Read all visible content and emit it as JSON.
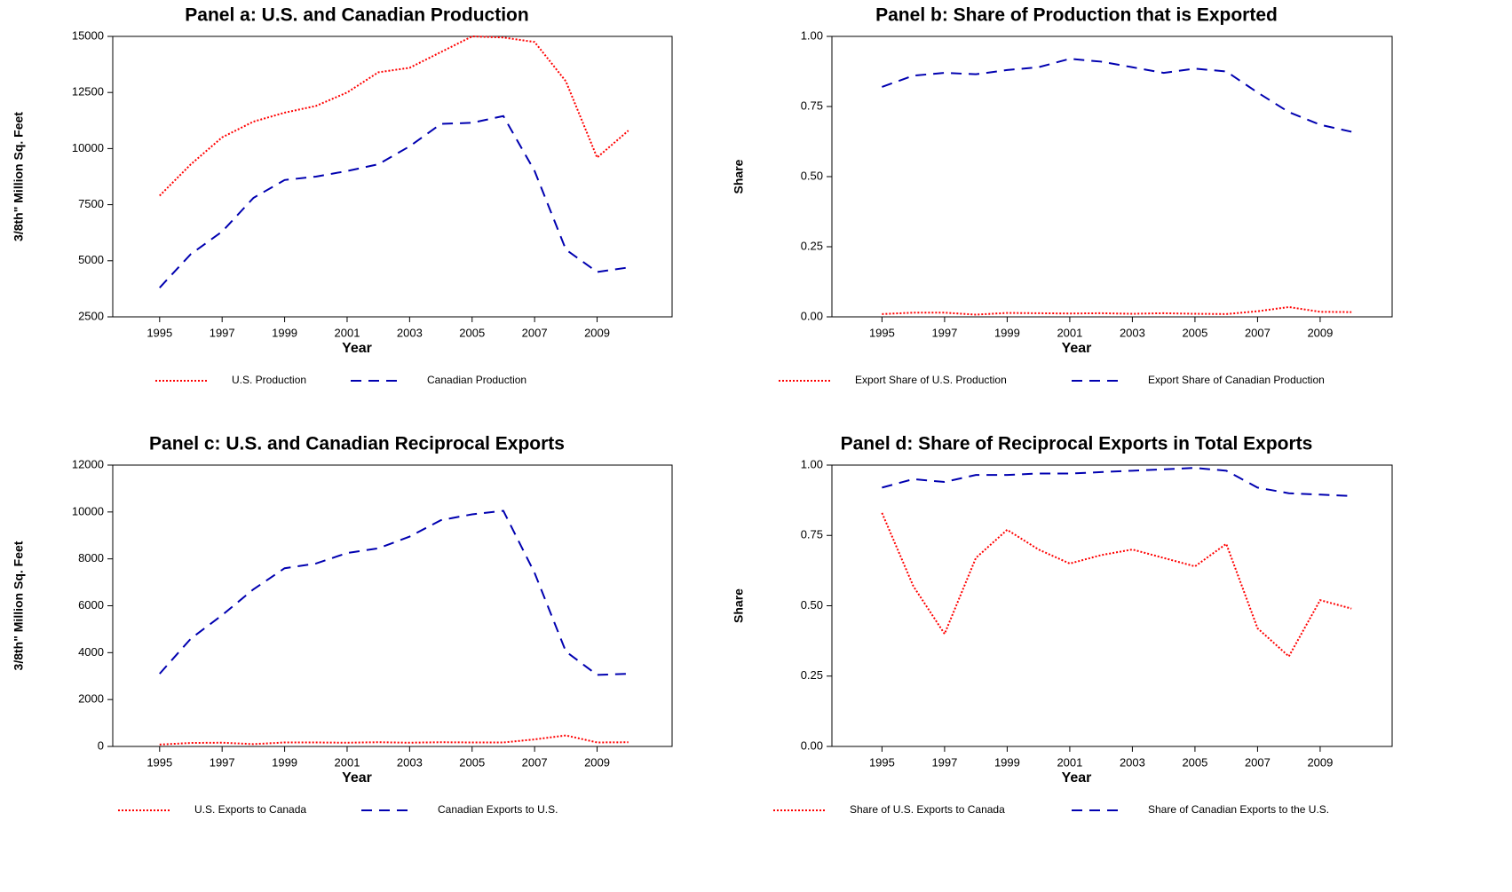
{
  "chart_data": [
    {
      "type": "line",
      "title": "Panel a: U.S. and Canadian Production",
      "x_label": "Year",
      "y_label": "3/8th\" Million Sq. Feet",
      "x": [
        1995,
        1996,
        1997,
        1998,
        1999,
        2000,
        2001,
        2002,
        2003,
        2004,
        2005,
        2006,
        2007,
        2008,
        2009,
        2010
      ],
      "xlim": [
        1993.5,
        2011.4
      ],
      "xticks": [
        1995,
        1997,
        1999,
        2001,
        2003,
        2005,
        2007,
        2009
      ],
      "ylim": [
        2500,
        15000
      ],
      "yticks": [
        2500,
        5000,
        7500,
        10000,
        12500,
        15000
      ],
      "series": [
        {
          "name": "U.S. Production",
          "color": "#ff0000",
          "style": "dotted",
          "values": [
            7900,
            9300,
            10500,
            11200,
            11600,
            11900,
            12500,
            13400,
            13600,
            14300,
            15000,
            14950,
            14750,
            13000,
            9600,
            10800
          ]
        },
        {
          "name": "Canadian Production",
          "color": "#0000b0",
          "style": "dashed",
          "values": [
            3800,
            5300,
            6300,
            7800,
            8600,
            8750,
            9000,
            9300,
            10100,
            11100,
            11150,
            11450,
            9000,
            5500,
            4500,
            4700
          ]
        }
      ]
    },
    {
      "type": "line",
      "title": "Panel b: Share of Production that is Exported",
      "x_label": "Year",
      "y_label": "Share",
      "x": [
        1995,
        1996,
        1997,
        1998,
        1999,
        2000,
        2001,
        2002,
        2003,
        2004,
        2005,
        2006,
        2007,
        2008,
        2009,
        2010
      ],
      "xlim": [
        1993.4,
        2011.3
      ],
      "xticks": [
        1995,
        1997,
        1999,
        2001,
        2003,
        2005,
        2007,
        2009
      ],
      "ylim": [
        0,
        1
      ],
      "yticks": [
        {
          "value": 0,
          "label": "0.00"
        },
        {
          "value": 0.25,
          "label": "0.25"
        },
        {
          "value": 0.5,
          "label": "0.50"
        },
        {
          "value": 0.75,
          "label": "0.75"
        },
        {
          "value": 1,
          "label": "1.00"
        }
      ],
      "series": [
        {
          "name": "Export Share of U.S. Production",
          "color": "#ff0000",
          "style": "dotted",
          "values": [
            0.01,
            0.015,
            0.015,
            0.008,
            0.014,
            0.013,
            0.012,
            0.013,
            0.011,
            0.013,
            0.011,
            0.01,
            0.02,
            0.035,
            0.018,
            0.017
          ]
        },
        {
          "name": "Export Share of Canadian Production",
          "color": "#0000b0",
          "style": "dashed",
          "values": [
            0.82,
            0.86,
            0.87,
            0.865,
            0.88,
            0.89,
            0.92,
            0.91,
            0.89,
            0.87,
            0.885,
            0.875,
            0.8,
            0.73,
            0.685,
            0.66
          ]
        }
      ]
    },
    {
      "type": "line",
      "title": "Panel c: U.S. and Canadian Reciprocal Exports",
      "x_label": "Year",
      "y_label": "3/8th\" Million Sq. Feet",
      "x": [
        1995,
        1996,
        1997,
        1998,
        1999,
        2000,
        2001,
        2002,
        2003,
        2004,
        2005,
        2006,
        2007,
        2008,
        2009,
        2010
      ],
      "xlim": [
        1993.5,
        2011.4
      ],
      "xticks": [
        1995,
        1997,
        1999,
        2001,
        2003,
        2005,
        2007,
        2009
      ],
      "ylim": [
        0,
        12000
      ],
      "yticks": [
        0,
        2000,
        4000,
        6000,
        8000,
        10000,
        12000
      ],
      "series": [
        {
          "name": "U.S. Exports to Canada",
          "color": "#ff0000",
          "style": "dotted",
          "values": [
            80,
            150,
            160,
            100,
            170,
            170,
            160,
            180,
            160,
            180,
            170,
            170,
            300,
            470,
            170,
            180
          ]
        },
        {
          "name": "Canadian Exports to U.S.",
          "color": "#0000b0",
          "style": "dashed",
          "values": [
            3100,
            4600,
            5600,
            6700,
            7600,
            7800,
            8250,
            8450,
            8950,
            9650,
            9900,
            10050,
            7400,
            4050,
            3050,
            3100
          ]
        }
      ]
    },
    {
      "type": "line",
      "title": "Panel d: Share of Reciprocal Exports in Total Exports",
      "x_label": "Year",
      "y_label": "Share",
      "x": [
        1995,
        1996,
        1997,
        1998,
        1999,
        2000,
        2001,
        2002,
        2003,
        2004,
        2005,
        2006,
        2007,
        2008,
        2009,
        2010
      ],
      "xlim": [
        1993.4,
        2011.3
      ],
      "xticks": [
        1995,
        1997,
        1999,
        2001,
        2003,
        2005,
        2007,
        2009
      ],
      "ylim": [
        0,
        1
      ],
      "yticks": [
        {
          "value": 0,
          "label": "0.00"
        },
        {
          "value": 0.25,
          "label": "0.25"
        },
        {
          "value": 0.5,
          "label": "0.50"
        },
        {
          "value": 0.75,
          "label": "0.75"
        },
        {
          "value": 1,
          "label": "1.00"
        }
      ],
      "series": [
        {
          "name": "Share of U.S. Exports to Canada",
          "color": "#ff0000",
          "style": "dotted",
          "values": [
            0.83,
            0.57,
            0.4,
            0.67,
            0.77,
            0.7,
            0.65,
            0.68,
            0.7,
            0.67,
            0.64,
            0.72,
            0.42,
            0.32,
            0.52,
            0.49
          ]
        },
        {
          "name": "Share of Canadian Exports to the U.S.",
          "color": "#0000b0",
          "style": "dashed",
          "values": [
            0.92,
            0.95,
            0.94,
            0.965,
            0.965,
            0.97,
            0.97,
            0.975,
            0.98,
            0.985,
            0.99,
            0.98,
            0.92,
            0.9,
            0.895,
            0.89
          ]
        }
      ]
    }
  ]
}
